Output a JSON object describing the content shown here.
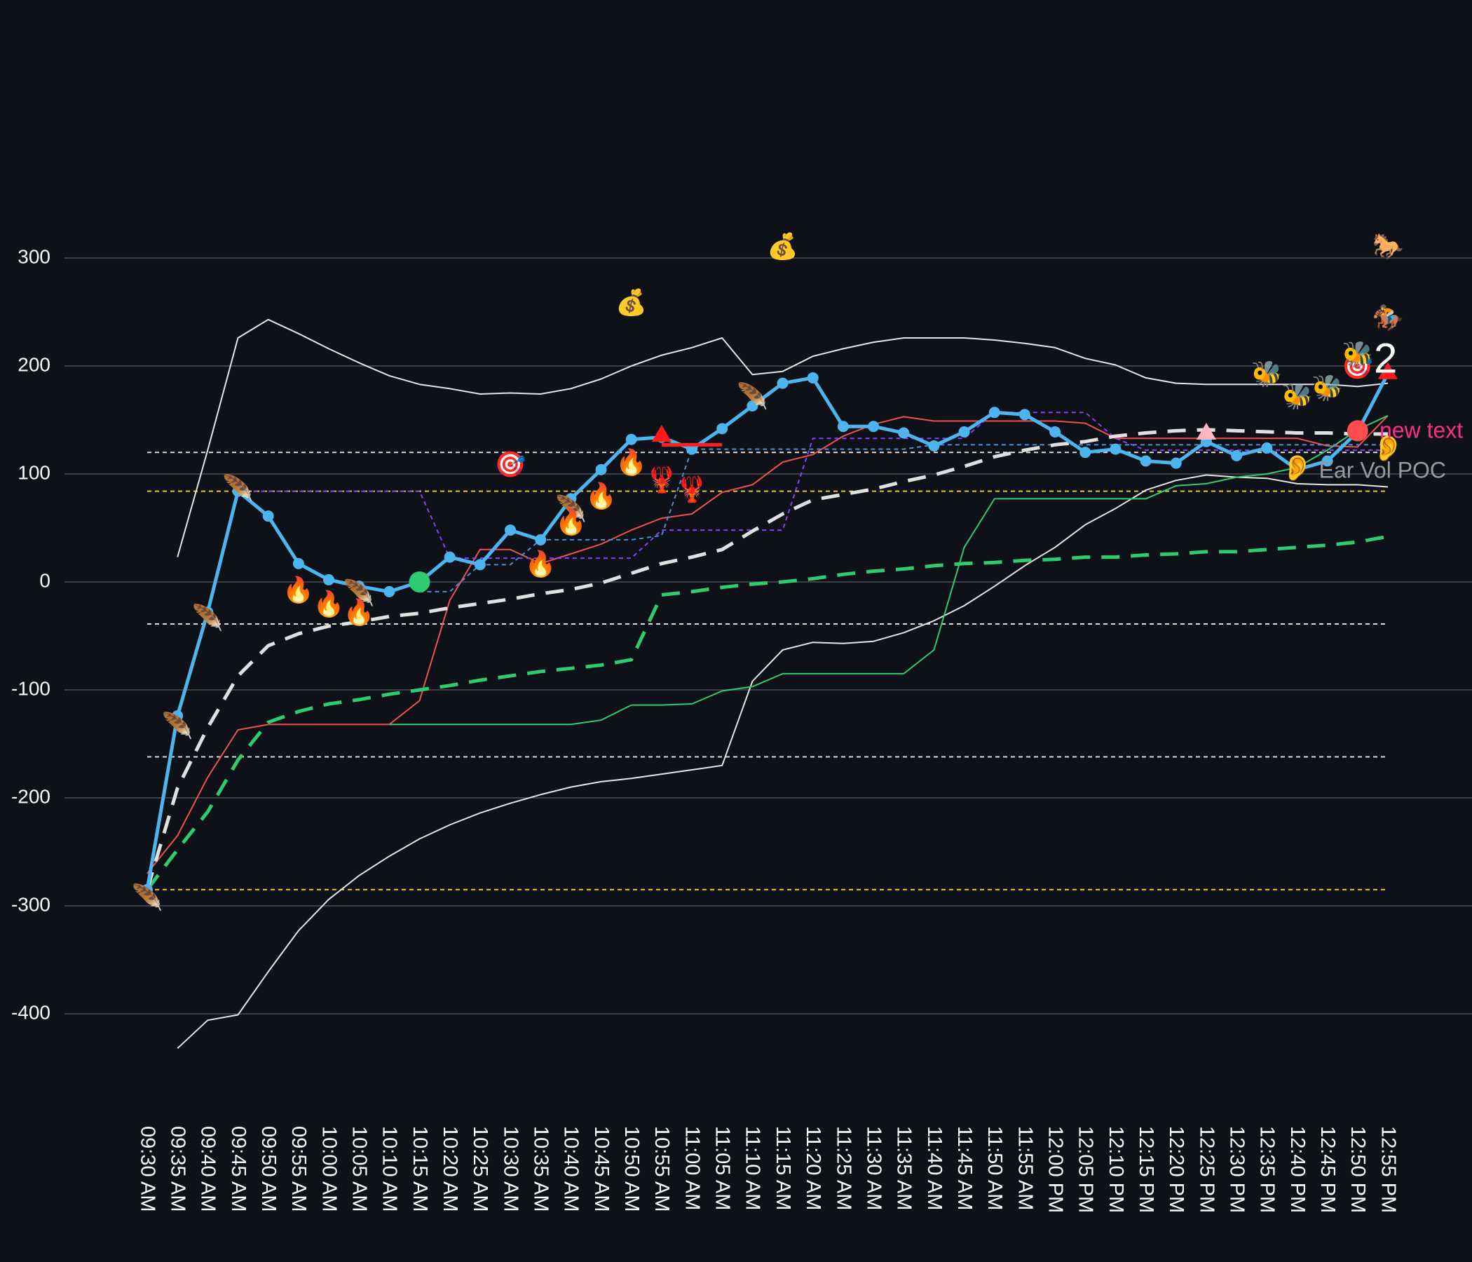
{
  "chart_data": {
    "type": "line",
    "background": "#0e1118",
    "grid": true,
    "ylim": [
      -450,
      400
    ],
    "yticks": [
      -400,
      -300,
      -200,
      -100,
      0,
      100,
      200,
      300
    ],
    "categories": [
      "09:30 AM",
      "09:35 AM",
      "09:40 AM",
      "09:45 AM",
      "09:50 AM",
      "09:55 AM",
      "10:00 AM",
      "10:05 AM",
      "10:10 AM",
      "10:15 AM",
      "10:20 AM",
      "10:25 AM",
      "10:30 AM",
      "10:35 AM",
      "10:40 AM",
      "10:45 AM",
      "10:50 AM",
      "10:55 AM",
      "11:00 AM",
      "11:05 AM",
      "11:10 AM",
      "11:15 AM",
      "11:20 AM",
      "11:25 AM",
      "11:30 AM",
      "11:35 AM",
      "11:40 AM",
      "11:45 AM",
      "11:50 AM",
      "11:55 AM",
      "12:00 PM",
      "12:05 PM",
      "12:10 PM",
      "12:15 PM",
      "12:20 PM",
      "12:25 PM",
      "12:30 PM",
      "12:35 PM",
      "12:40 PM",
      "12:45 PM",
      "12:50 PM",
      "12:55 PM"
    ],
    "series": [
      {
        "color": "#e6e6e6",
        "style": "solid-thin",
        "values": [
          null,
          23,
          122,
          226,
          243,
          230,
          216,
          203,
          191,
          183,
          179,
          174,
          175,
          174,
          179,
          188,
          200,
          210,
          217,
          226,
          192,
          195,
          209,
          216,
          222,
          226,
          226,
          226,
          224,
          221,
          217,
          207,
          201,
          189,
          184,
          183,
          183,
          183,
          183,
          183,
          181,
          184
        ]
      },
      {
        "color": "#e6e6e6",
        "style": "solid-thin",
        "values": [
          null,
          -432,
          -406,
          -401,
          -361,
          -323,
          -294,
          -272,
          -254,
          -238,
          -225,
          -214,
          -205,
          -197,
          -190,
          -185,
          -182,
          -178,
          -174,
          -170,
          -92,
          -63,
          -56,
          -57,
          -55,
          -47,
          -36,
          -22,
          -4,
          15,
          32,
          53,
          68,
          85,
          94,
          99,
          97,
          96,
          91,
          90,
          90,
          88
        ]
      },
      {
        "color": "#f05050",
        "style": "solid-thin",
        "values": [
          -270,
          -235,
          -181,
          -137,
          -132,
          -132,
          -132,
          -132,
          -132,
          -110,
          -17,
          30,
          30,
          17,
          26,
          35,
          48,
          59,
          63,
          83,
          90,
          111,
          118,
          135,
          146,
          153,
          149,
          149,
          149,
          149,
          149,
          147,
          133,
          133,
          133,
          133,
          133,
          133,
          133,
          126,
          125,
          154
        ]
      },
      {
        "color": "#2ecc71",
        "style": "solid-thin",
        "values": [
          null,
          null,
          null,
          null,
          null,
          null,
          null,
          null,
          -132,
          -132,
          -132,
          -132,
          -132,
          -132,
          -132,
          -128,
          -114,
          -114,
          -113,
          -101,
          -97,
          -85,
          -85,
          -85,
          -85,
          -85,
          -63,
          32,
          77,
          77,
          77,
          77,
          77,
          77,
          89,
          91,
          97,
          100,
          106,
          122,
          141,
          154
        ]
      },
      {
        "color": "#8a3ffc",
        "style": "dashed-thin",
        "values": [
          null,
          null,
          null,
          84,
          84,
          84,
          84,
          84,
          84,
          84,
          22,
          22,
          22,
          22,
          22,
          22,
          22,
          48,
          48,
          48,
          48,
          48,
          133,
          133,
          133,
          133,
          133,
          133,
          157,
          157,
          157,
          157,
          133,
          122,
          122,
          122,
          122,
          122,
          122,
          122,
          122,
          122
        ]
      },
      {
        "color": "#4a90d9",
        "style": "dashed-thin",
        "values": [
          null,
          null,
          null,
          null,
          null,
          null,
          null,
          null,
          null,
          -9,
          -9,
          16,
          16,
          39,
          39,
          39,
          39,
          43,
          123,
          123,
          123,
          123,
          123,
          123,
          123,
          123,
          127,
          127,
          127,
          127,
          127,
          127,
          127,
          127,
          127,
          127,
          127,
          127,
          127,
          127,
          127,
          127
        ]
      },
      {
        "color": "#2ecc71",
        "style": "dashed-thick",
        "values": [
          -285,
          -248,
          -213,
          -165,
          -130,
          -120,
          -113,
          -109,
          -104,
          -100,
          -96,
          -91,
          -87,
          -83,
          -80,
          -77,
          -72,
          -12,
          -9,
          -5,
          -2,
          0,
          3,
          7,
          10,
          12,
          15,
          17,
          18,
          20,
          21,
          23,
          23,
          25,
          26,
          28,
          28,
          30,
          32,
          34,
          37,
          42
        ]
      },
      {
        "color": "#e0e0e0",
        "style": "dashed-thick",
        "values": [
          -285,
          -191,
          -135,
          -87,
          -59,
          -48,
          -41,
          -37,
          -32,
          -29,
          -24,
          -20,
          -16,
          -11,
          -7,
          -1,
          8,
          17,
          23,
          30,
          47,
          63,
          76,
          81,
          86,
          93,
          99,
          107,
          116,
          122,
          127,
          130,
          135,
          138,
          140,
          141,
          140,
          139,
          138,
          138,
          137,
          137
        ]
      },
      {
        "color": "#4cb5ef",
        "style": "line-markers",
        "values": [
          -285,
          -124,
          -28,
          84,
          61,
          17,
          2,
          -4,
          -9,
          0,
          23,
          16,
          48,
          39,
          77,
          104,
          132,
          134,
          123,
          142,
          163,
          184,
          189,
          144,
          144,
          138,
          126,
          139,
          157,
          155,
          139,
          120,
          123,
          112,
          110,
          130,
          117,
          124,
          104,
          112,
          139,
          193
        ]
      }
    ],
    "hlines": [
      {
        "value": 120,
        "color": "#dddddd"
      },
      {
        "value": -39,
        "color": "#dddddd"
      },
      {
        "value": -162,
        "color": "#dddddd"
      },
      {
        "value": 84,
        "color": "#e6c619"
      },
      {
        "value": -285,
        "color": "#e6c619"
      }
    ],
    "segments": [
      {
        "x": [
          "10:55 AM",
          "11:05 AM"
        ],
        "y": 127,
        "color": "#ff2020"
      }
    ],
    "points": [
      {
        "x": "10:15 AM",
        "y": 0,
        "shape": "circle",
        "color": "#2ecc71"
      },
      {
        "x": "10:55 AM",
        "y": 137,
        "shape": "triangle",
        "color": "#ff1a1a"
      },
      {
        "x": "12:25 PM",
        "y": 139,
        "shape": "triangle",
        "color": "#ffb6c1"
      },
      {
        "x": "12:50 PM",
        "y": 140,
        "shape": "circle",
        "color": "#ff4d4d"
      },
      {
        "x": "12:55 PM",
        "y": 195,
        "shape": "triangle",
        "color": "#ff1a1a"
      }
    ],
    "annotations": [
      {
        "text": "new text",
        "x": "12:55 PM",
        "y": 139,
        "color": "#ff2d8a"
      },
      {
        "text": "Ear Vol POC",
        "x": "12:45 PM",
        "y": 102,
        "color": "#9a9a9a"
      },
      {
        "text": "2",
        "x": "12:55 PM",
        "y": 204,
        "color": "#ffffff"
      }
    ],
    "icons": [
      {
        "text": "🪶",
        "x": "09:30 AM",
        "y": -294
      },
      {
        "text": "🪶",
        "x": "09:35 AM",
        "y": -135
      },
      {
        "text": "🪶",
        "x": "09:40 AM",
        "y": -35
      },
      {
        "text": "🪶",
        "x": "09:45 AM",
        "y": 85
      },
      {
        "text": "🪶",
        "x": "10:05 AM",
        "y": -12
      },
      {
        "text": "🪶",
        "x": "10:40 AM",
        "y": 66
      },
      {
        "text": "🪶",
        "x": "11:10 AM",
        "y": 170
      },
      {
        "text": "🔥",
        "x": "09:55 AM",
        "y": -9
      },
      {
        "text": "🔥",
        "x": "10:00 AM",
        "y": -22
      },
      {
        "text": "🔥",
        "x": "10:05 AM",
        "y": -30
      },
      {
        "text": "🔥",
        "x": "10:35 AM",
        "y": 15
      },
      {
        "text": "🔥",
        "x": "10:40 AM",
        "y": 54
      },
      {
        "text": "🔥",
        "x": "10:45 AM",
        "y": 78
      },
      {
        "text": "🔥",
        "x": "10:50 AM",
        "y": 109
      },
      {
        "text": "🦞",
        "x": "10:55 AM",
        "y": 93
      },
      {
        "text": "🦞",
        "x": "11:00 AM",
        "y": 84
      },
      {
        "text": "🎯",
        "x": "10:30 AM",
        "y": 107
      },
      {
        "text": "🎯",
        "x": "12:50 PM",
        "y": 198
      },
      {
        "text": "💰",
        "x": "10:50 AM",
        "y": 257
      },
      {
        "text": "💰",
        "x": "11:15 AM",
        "y": 309
      },
      {
        "text": "🐝",
        "x": "12:35 PM",
        "y": 191
      },
      {
        "text": "🐝",
        "x": "12:40 PM",
        "y": 170
      },
      {
        "text": "🐝",
        "x": "12:45 PM",
        "y": 178
      },
      {
        "text": "🐝",
        "x": "12:50 PM",
        "y": 209
      },
      {
        "text": "🏇",
        "x": "12:55 PM",
        "y": 243
      },
      {
        "text": "🐎",
        "x": "12:55 PM",
        "y": 309
      },
      {
        "text": "👂",
        "x": "12:40 PM",
        "y": 104
      },
      {
        "text": "👂",
        "x": "12:55 PM",
        "y": 122
      }
    ]
  }
}
